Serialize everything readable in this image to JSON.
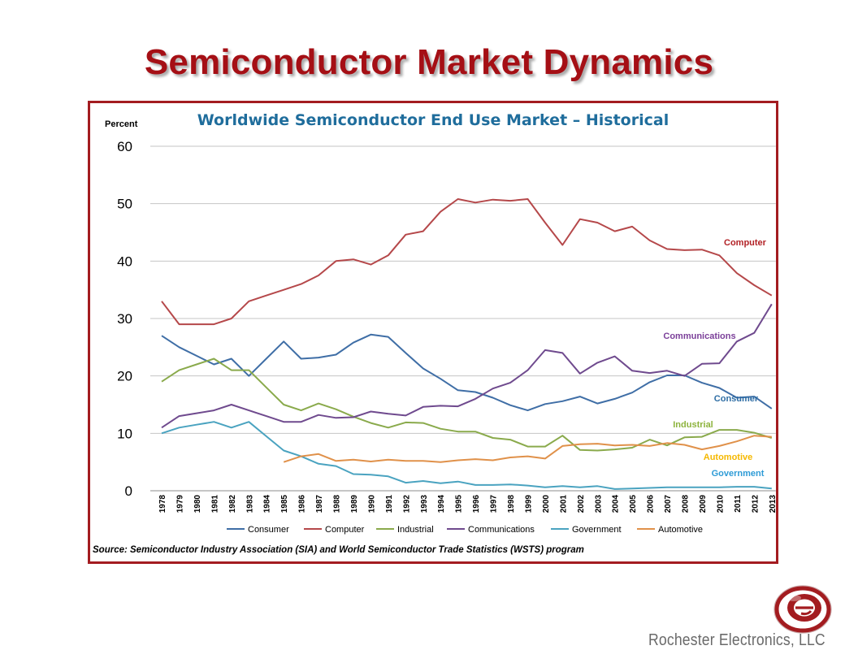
{
  "slide": {
    "title": "Semiconductor Market Dynamics",
    "company": "Rochester Electronics, LLC"
  },
  "chart_data": {
    "type": "line",
    "title": "Worldwide Semiconductor End Use Market – Historical",
    "ylabel": "Percent",
    "ylim": [
      0,
      60
    ],
    "yticks": [
      0,
      10,
      20,
      30,
      40,
      50,
      60
    ],
    "grid": true,
    "legend_position": "bottom",
    "source": "Source: Semiconductor Industry Association (SIA) and World Semiconductor Trade Statistics (WSTS) program",
    "categories": [
      "1978",
      "1979",
      "1980",
      "1981",
      "1982",
      "1983",
      "1984",
      "1985",
      "1986",
      "1987",
      "1988",
      "1989",
      "1990",
      "1991",
      "1992",
      "1993",
      "1994",
      "1995",
      "1996",
      "1997",
      "1998",
      "1999",
      "2000",
      "2001",
      "2002",
      "2003",
      "2004",
      "2005",
      "2006",
      "2007",
      "2008",
      "2009",
      "2010",
      "2011",
      "2012",
      "2013"
    ],
    "series": [
      {
        "name": "Consumer",
        "color": "#3f6ea6",
        "label": "Consumer",
        "label_color": "#2e6da4",
        "values": [
          27,
          25,
          23.5,
          22,
          23,
          20,
          23,
          26,
          23,
          23.2,
          23.7,
          25.8,
          27.2,
          26.8,
          24,
          21.3,
          19.5,
          17.5,
          17.2,
          16.2,
          14.9,
          14,
          15.1,
          15.6,
          16.4,
          15.2,
          16,
          17.1,
          18.9,
          20.1,
          20.1,
          18.8,
          17.9,
          16.2,
          16.4,
          14.3
        ]
      },
      {
        "name": "Computer",
        "color": "#b5484a",
        "label": "Computer",
        "label_color": "#b22226",
        "values": [
          33,
          29,
          29,
          29,
          30,
          33,
          34,
          35,
          36,
          37.5,
          40,
          40.3,
          39.4,
          41,
          44.6,
          45.2,
          48.6,
          50.8,
          50.2,
          50.7,
          50.5,
          50.8,
          46.7,
          42.8,
          47.3,
          46.7,
          45.2,
          46,
          43.6,
          42.1,
          41.9,
          42,
          41,
          37.9,
          35.8,
          34
        ]
      },
      {
        "name": "Industrial",
        "color": "#8aaa4c",
        "label": "Industrial",
        "label_color": "#8db33d",
        "values": [
          19,
          21,
          22,
          23,
          21,
          21,
          18,
          15,
          14,
          15.2,
          14.2,
          12.9,
          11.8,
          11,
          11.9,
          11.8,
          10.8,
          10.3,
          10.3,
          9.2,
          8.9,
          7.7,
          7.7,
          9.6,
          7.1,
          7,
          7.2,
          7.5,
          8.9,
          7.9,
          9.3,
          9.4,
          10.6,
          10.6,
          10.1,
          9.2
        ]
      },
      {
        "name": "Communications",
        "color": "#6f4a8e",
        "label": "Communications",
        "label_color": "#7b3f99",
        "values": [
          11,
          13,
          13.5,
          14,
          15,
          14,
          13,
          12,
          12,
          13.2,
          12.7,
          12.8,
          13.8,
          13.4,
          13.1,
          14.6,
          14.8,
          14.7,
          16,
          17.8,
          18.8,
          21,
          24.5,
          24,
          20.4,
          22.3,
          23.4,
          20.9,
          20.5,
          20.9,
          20,
          22.1,
          22.2,
          26,
          27.5,
          32.5
        ]
      },
      {
        "name": "Government",
        "color": "#4aa3c0",
        "label": "Government",
        "label_color": "#2e9bd6",
        "values": [
          10,
          11,
          11.5,
          12,
          11,
          12,
          9.5,
          7,
          6,
          4.7,
          4.3,
          2.9,
          2.8,
          2.5,
          1.4,
          1.7,
          1.3,
          1.6,
          1,
          1,
          1.1,
          0.9,
          0.6,
          0.8,
          0.6,
          0.8,
          0.3,
          0.4,
          0.5,
          0.6,
          0.6,
          0.6,
          0.6,
          0.7,
          0.7,
          0.4
        ]
      },
      {
        "name": "Automotive",
        "color": "#e0914a",
        "label": "Automotive",
        "label_color": "#f5b800",
        "values": [
          null,
          null,
          null,
          null,
          null,
          null,
          null,
          5,
          6,
          6.4,
          5.2,
          5.4,
          5.1,
          5.4,
          5.2,
          5.2,
          5,
          5.3,
          5.5,
          5.3,
          5.8,
          6,
          5.6,
          7.8,
          8.1,
          8.2,
          7.9,
          8,
          7.8,
          8.3,
          8,
          7.2,
          7.8,
          8.6,
          9.6,
          9.4
        ]
      }
    ]
  },
  "logo": {
    "name": "rochester-electronics-logo",
    "color": "#a31c20"
  }
}
